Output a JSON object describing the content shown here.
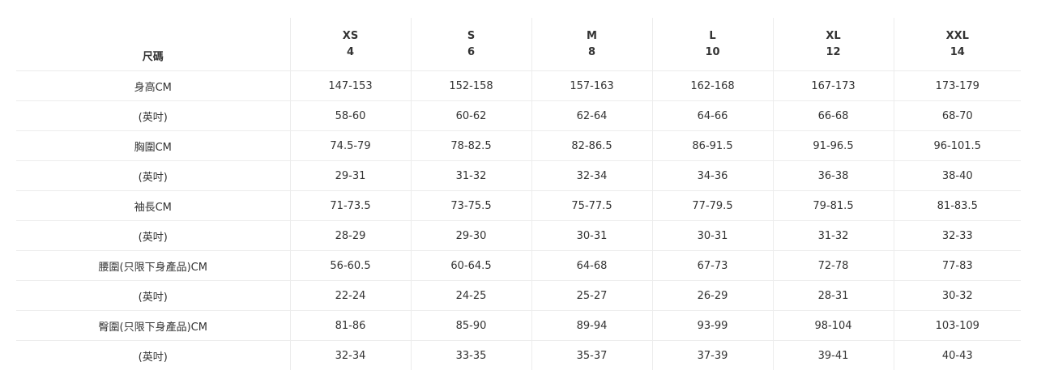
{
  "table": {
    "corner": "尺碼",
    "columns": [
      {
        "size": "XS",
        "number": "4"
      },
      {
        "size": "S",
        "number": "6"
      },
      {
        "size": "M",
        "number": "8"
      },
      {
        "size": "L",
        "number": "10"
      },
      {
        "size": "XL",
        "number": "12"
      },
      {
        "size": "XXL",
        "number": "14"
      }
    ],
    "rows": [
      [
        "身高CM",
        "147-153",
        "152-158",
        "157-163",
        "162-168",
        "167-173",
        "173-179"
      ],
      [
        "(英吋)",
        "58-60",
        "60-62",
        "62-64",
        "64-66",
        "66-68",
        "68-70"
      ],
      [
        "胸圍CM",
        "74.5-79",
        "78-82.5",
        "82-86.5",
        "86-91.5",
        "91-96.5",
        "96-101.5"
      ],
      [
        "(英吋)",
        "29-31",
        "31-32",
        "32-34",
        "34-36",
        "36-38",
        "38-40"
      ],
      [
        "袖長CM",
        "71-73.5",
        "73-75.5",
        "75-77.5",
        "77-79.5",
        "79-81.5",
        "81-83.5"
      ],
      [
        "(英吋)",
        "28-29",
        "29-30",
        "30-31",
        "30-31",
        "31-32",
        "32-33"
      ],
      [
        "腰圍(只限下身產品)CM",
        "56-60.5",
        "60-64.5",
        "64-68",
        "67-73",
        "72-78",
        "77-83"
      ],
      [
        "(英吋)",
        "22-24",
        "24-25",
        "25-27",
        "26-29",
        "28-31",
        "30-32"
      ],
      [
        "臀圍(只限下身產品)CM",
        "81-86",
        "85-90",
        "89-94",
        "93-99",
        "98-104",
        "103-109"
      ],
      [
        "(英吋)",
        "32-34",
        "33-35",
        "35-37",
        "37-39",
        "39-41",
        "40-43"
      ]
    ]
  }
}
